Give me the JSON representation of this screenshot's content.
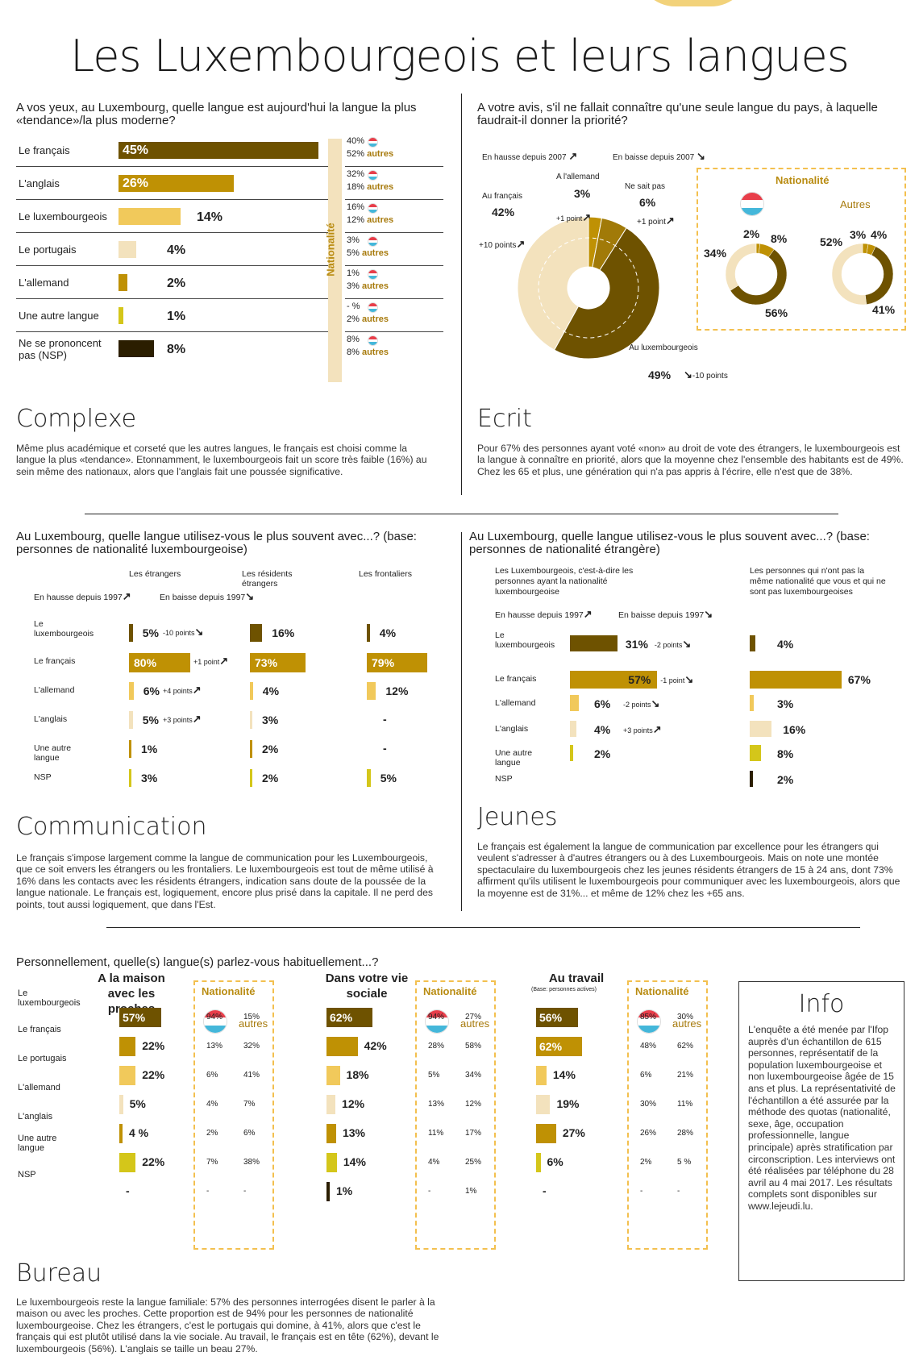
{
  "title": "Les Luxembourgeois et leurs langues",
  "colors": {
    "dark": "#6e5200",
    "gold": "#bf9104",
    "light": "#f1c95b",
    "pale": "#f3e2bd",
    "lime": "#d4c61a",
    "black": "#2b1e00",
    "flagRed": "#e83e4a",
    "flagBlue": "#44b7da"
  },
  "s1": {
    "question": "A vos yeux, au Luxembourg, quelle langue est aujourd'hui la langue la plus «tendance»/la plus moderne?",
    "nationalite": "Nationalité",
    "rows": [
      {
        "label": "Le français",
        "value": "45%",
        "lux": "40%",
        "autres": "52%",
        "color": "dark"
      },
      {
        "label": "L'anglais",
        "value": "26%",
        "lux": "32%",
        "autres": "18%",
        "color": "gold"
      },
      {
        "label": "Le luxembourgeois",
        "value": "14%",
        "lux": "16%",
        "autres": "12%",
        "color": "light"
      },
      {
        "label": "Le portugais",
        "value": "4%",
        "lux": "3%",
        "autres": "5%",
        "color": "pale"
      },
      {
        "label": "L'allemand",
        "value": "2%",
        "lux": "1%",
        "autres": "3%",
        "color": "gold"
      },
      {
        "label": "Une autre langue",
        "value": "1%",
        "lux": "- %",
        "autres": "2%",
        "color": "lime"
      },
      {
        "label": "Ne se prononcent pas (NSP)",
        "value": "8%",
        "lux": "8%",
        "autres": "8%",
        "color": "black"
      }
    ],
    "autres_word": "autres",
    "head": "Complexe",
    "text": "Même plus académique et corseté que les autres langues, le français est choisi comme la langue la plus «tendance». Etonnamment, le luxembourgeois fait un score très faible (16%) au sein même des nationaux, alors que l'anglais fait une poussée significative."
  },
  "s2": {
    "question": "A votre avis, s'il ne fallait connaître qu'une seule langue du pays, à laquelle faudrait-il donner la priorité?",
    "hausse": "En hausse depuis 2007",
    "baisse": "En baisse depuis 2007",
    "francais": "Au français",
    "francais_v": "42%",
    "francais_d": "+10 points",
    "allemand": "A l'allemand",
    "allemand_v": "3%",
    "allemand_d": "+1 point",
    "nsp": "Ne sait pas",
    "nsp_v": "6%",
    "nsp_d": "+1 point",
    "lux": "Au luxembourgeois",
    "lux_v": "49%",
    "lux_d": "-10 points",
    "nationalite": "Nationalité",
    "autres": "Autres",
    "lux_d1": "2%",
    "lux_d2": "8%",
    "lux_d3": "34%",
    "lux_d4": "56%",
    "aut_d1": "52%",
    "aut_d2": "3%",
    "aut_d3": "4%",
    "aut_d4": "41%",
    "head": "Ecrit",
    "text": "Pour 67% des personnes ayant voté «non» au droit de vote des étrangers, le luxembourgeois est la langue à connaître en priorité, alors que la moyenne chez l'ensemble des habitants est de 49%. Chez les 65 et plus, une génération qui n'a pas appris à l'écrire, elle n'est que de 38%."
  },
  "s3": {
    "question": "Au Luxembourg, quelle langue utilisez-vous le plus souvent avec...? (base: personnes de nationalité luxembourgeoise)",
    "hausse": "En hausse depuis 1997",
    "baisse": "En baisse depuis 1997",
    "cols": [
      "Les étrangers",
      "Les résidents étrangers",
      "Les frontaliers"
    ],
    "rows": [
      {
        "label": "Le luxembourgeois",
        "a": "5%",
        "ad": "-10 points",
        "b": "16%",
        "c": "4%",
        "color": "dark"
      },
      {
        "label": "Le français",
        "a": "80%",
        "ad": "+1 point",
        "b": "73%",
        "c": "79%",
        "color": "gold"
      },
      {
        "label": "L'allemand",
        "a": "6%",
        "ad": "+4 points",
        "b": "4%",
        "c": "12%",
        "color": "light"
      },
      {
        "label": "L'anglais",
        "a": "5%",
        "ad": "+3 points",
        "b": "3%",
        "c": "-",
        "color": "pale"
      },
      {
        "label": "Une autre langue",
        "a": "1%",
        "ad": "",
        "b": "2%",
        "c": "-",
        "color": "gold"
      },
      {
        "label": "NSP",
        "a": "3%",
        "ad": "",
        "b": "2%",
        "c": "5%",
        "color": "lime"
      }
    ],
    "head": "Communication",
    "text": "Le français s'impose largement comme la langue de communication pour les Luxembourgeois, que ce soit envers les étrangers ou les frontaliers. Le luxembourgeois est tout de même utilisé à 16% dans les contacts avec les résidents étrangers, indication sans doute de la poussée de la langue nationale. Le français est, logiquement, encore plus prisé dans la capitale. Il ne perd des points, tout aussi logiquement, que dans l'Est."
  },
  "s4": {
    "question": "Au Luxembourg, quelle langue utilisez-vous le plus souvent avec...? (base: personnes de nationalité étrangère)",
    "colA": "Les Luxembourgeois, c'est-à-dire les personnes ayant la nationalité luxembourgeoise",
    "colB": "Les personnes qui n'ont pas la même nationalité que vous et qui ne sont pas luxembourgeoises",
    "hausse": "En hausse depuis 1997",
    "baisse": "En baisse depuis 1997",
    "rows": [
      {
        "label": "Le luxembourgeois",
        "a": "31%",
        "av": 31,
        "ad": "-2 points",
        "b": "4%",
        "bv": 4,
        "color": "dark"
      },
      {
        "label": "Le français",
        "a": "57%",
        "av": 57,
        "ad": "-1 point",
        "b": "67%",
        "bv": 67,
        "color": "gold"
      },
      {
        "label": "L'allemand",
        "a": "6%",
        "av": 6,
        "ad": "-2 points",
        "b": "3%",
        "bv": 3,
        "color": "light"
      },
      {
        "label": "L'anglais",
        "a": "4%",
        "av": 4,
        "ad": "+3 points",
        "b": "16%",
        "bv": 16,
        "color": "pale"
      },
      {
        "label": "Une autre langue",
        "a": "2%",
        "av": 2,
        "ad": "",
        "b": "8%",
        "bv": 8,
        "color": "lime"
      },
      {
        "label": "NSP",
        "a": "",
        "av": 0,
        "ad": "",
        "b": "2%",
        "bv": 2,
        "color": "black"
      }
    ],
    "head": "Jeunes",
    "text": "Le français est également la langue de communication par excellence pour les étrangers qui veulent s'adresser à d'autres étrangers ou à des Luxembourgeois. Mais on note une montée spectaculaire du luxembourgeois chez les jeunes résidents étrangers de 15 à 24 ans, dont 73% affirment qu'ils utilisent le luxembourgeois pour communiquer avec les luxembourgeois, alors que la moyenne est de 31%... et même de 12% chez les +65 ans."
  },
  "s5": {
    "question": "Personnellement, quelle(s) langue(s) parlez-vous habituellement...?",
    "labels": [
      "Le luxembourgeois",
      "Le français",
      "Le portugais",
      "L'allemand",
      "L'anglais",
      "Une autre langue",
      "NSP"
    ],
    "colors": [
      "dark",
      "gold",
      "light",
      "pale",
      "gold",
      "lime",
      "black"
    ],
    "nationalite": "Nationalité",
    "autres": "autres",
    "groups": [
      {
        "title": "A la maison avec les proches",
        "sub": "",
        "vals": [
          "57%",
          "22%",
          "22%",
          "5%",
          "4 %",
          "22%",
          "-"
        ],
        "nums": [
          57,
          22,
          22,
          5,
          4,
          22,
          0
        ],
        "lux": [
          "94%",
          "13%",
          "6%",
          "4%",
          "2%",
          "7%",
          "-"
        ],
        "aut": [
          "15%",
          "32%",
          "41%",
          "7%",
          "6%",
          "38%",
          "-"
        ]
      },
      {
        "title": "Dans votre vie sociale",
        "sub": "",
        "vals": [
          "62%",
          "42%",
          "18%",
          "12%",
          "13%",
          "14%",
          "1%"
        ],
        "nums": [
          62,
          42,
          18,
          12,
          13,
          14,
          1
        ],
        "lux": [
          "94%",
          "28%",
          "5%",
          "13%",
          "11%",
          "4%",
          "-"
        ],
        "aut": [
          "27%",
          "58%",
          "34%",
          "12%",
          "17%",
          "25%",
          "1%"
        ]
      },
      {
        "title": "Au travail",
        "sub": "(Base: personnes actives)",
        "vals": [
          "56%",
          "62%",
          "14%",
          "19%",
          "27%",
          "6%",
          "-"
        ],
        "nums": [
          56,
          62,
          14,
          19,
          27,
          6,
          0
        ],
        "lux": [
          "85%",
          "48%",
          "6%",
          "30%",
          "26%",
          "2%",
          "-"
        ],
        "aut": [
          "30%",
          "62%",
          "21%",
          "11%",
          "28%",
          "5 %",
          "-"
        ]
      }
    ],
    "head": "Bureau",
    "text": "Le luxembourgeois reste la langue familiale: 57% des personnes interrogées disent le parler à la maison ou avec les proches. Cette proportion est de 94% pour les personnes de nationalité luxembourgeoise. Chez les étrangers, c'est le portugais qui domine, à 41%, alors que c'est le français qui est plutôt utilisé dans la vie sociale. Au travail, le français est en tête (62%), devant le luxembourgeois (56%). L'anglais se taille un beau 27%."
  },
  "info": {
    "head": "Info",
    "text": "L'enquête a été menée par l'Ifop auprès d'un échantillon de 615 personnes, représentatif de la population luxembourgeoise et non luxembourgeoise âgée de 15 ans et plus. La représentativité de l'échantillon a été assurée par la méthode des quotas (nationalité, sexe, âge, occupation professionnelle, langue principale) après stratification par circonscription. Les interviews ont été réalisées par téléphone du 28 avril au 4 mai 2017. Les résultats complets sont disponibles sur www.lejeudi.lu."
  },
  "chart_data": [
    {
      "type": "bar",
      "title": "A vos yeux, au Luxembourg, quelle langue est aujourd'hui la langue la plus «tendance»/la plus moderne?",
      "categories": [
        "Le français",
        "L'anglais",
        "Le luxembourgeois",
        "Le portugais",
        "L'allemand",
        "Une autre langue",
        "Ne se prononcent pas (NSP)"
      ],
      "series": [
        {
          "name": "",
          "values": [
            45,
            26,
            14,
            4,
            2,
            1,
            8
          ]
        }
      ]
    },
    {
      "type": "pie",
      "title": "A votre avis, s'il ne fallait connaître qu'une seule langue du pays, à laquelle faudrait-il donner la priorité?",
      "categories": [
        "Au luxembourgeois",
        "Au français",
        "A l'allemand",
        "Ne sait pas"
      ],
      "values": [
        49,
        42,
        3,
        6
      ]
    },
    {
      "type": "bar",
      "title": "Au Luxembourg, quelle langue utilisez-vous le plus souvent avec...? (base: personnes de nationalité luxembourgeoise)",
      "categories": [
        "Le luxembourgeois",
        "Le français",
        "L'allemand",
        "L'anglais",
        "Une autre langue",
        "NSP"
      ],
      "series": [
        {
          "name": "Les étrangers",
          "values": [
            5,
            80,
            6,
            5,
            1,
            3
          ]
        },
        {
          "name": "Les résidents étrangers",
          "values": [
            16,
            73,
            4,
            3,
            2,
            2
          ]
        },
        {
          "name": "Les frontaliers",
          "values": [
            4,
            79,
            12,
            null,
            null,
            5
          ]
        }
      ]
    },
    {
      "type": "bar",
      "title": "Au Luxembourg, quelle langue utilisez-vous le plus souvent avec...? (base: personnes de nationalité étrangère)",
      "categories": [
        "Le luxembourgeois",
        "Le français",
        "L'allemand",
        "L'anglais",
        "Une autre langue",
        "NSP"
      ],
      "series": [
        {
          "name": "Les Luxembourgeois",
          "values": [
            31,
            57,
            6,
            4,
            2,
            null
          ]
        },
        {
          "name": "Les personnes qui n'ont pas la même nationalité que vous et qui ne sont pas luxembourgeoises",
          "values": [
            4,
            67,
            3,
            16,
            8,
            2
          ]
        }
      ]
    },
    {
      "type": "bar",
      "title": "Personnellement, quelle(s) langue(s) parlez-vous habituellement...?",
      "categories": [
        "Le luxembourgeois",
        "Le français",
        "Le portugais",
        "L'allemand",
        "L'anglais",
        "Une autre langue",
        "NSP"
      ],
      "series": [
        {
          "name": "A la maison avec les proches",
          "values": [
            57,
            22,
            22,
            5,
            4,
            22,
            null
          ]
        },
        {
          "name": "Dans votre vie sociale",
          "values": [
            62,
            42,
            18,
            12,
            13,
            14,
            1
          ]
        },
        {
          "name": "Au travail",
          "values": [
            56,
            62,
            14,
            19,
            27,
            6,
            null
          ]
        }
      ]
    }
  ]
}
